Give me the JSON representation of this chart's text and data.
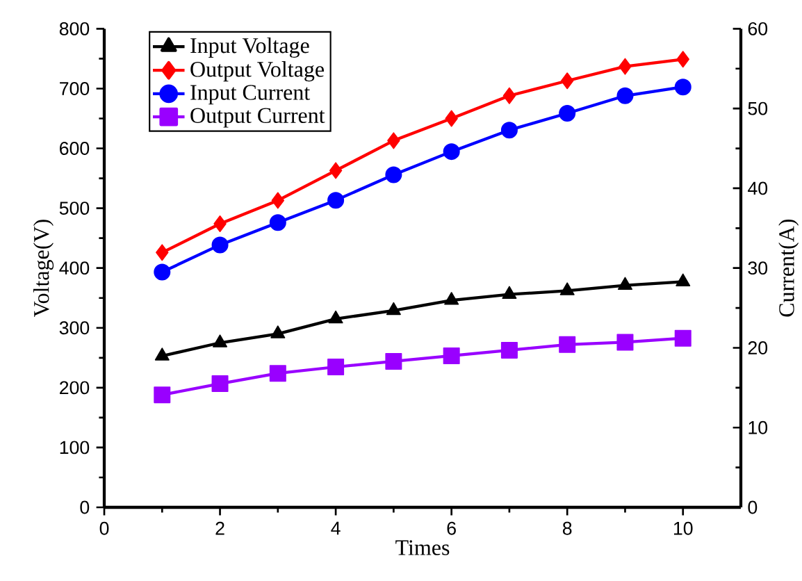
{
  "chart_data": {
    "type": "line",
    "xlabel": "Times",
    "ylabel": "Voltage(V)",
    "y2label": "Current(A)",
    "x": [
      1,
      2,
      3,
      4,
      5,
      6,
      7,
      8,
      9,
      10
    ],
    "series": [
      {
        "name": "Input Voltage",
        "color": "#000000",
        "marker": "triangle",
        "values": [
          253,
          275,
          290,
          315,
          329,
          346,
          356,
          362,
          371,
          377
        ]
      },
      {
        "name": "Output Voltage",
        "color": "#ff0000",
        "marker": "diamond",
        "values": [
          426,
          474,
          513,
          563,
          613,
          650,
          688,
          713,
          737,
          749
        ]
      },
      {
        "name": "Input Current",
        "color": "#0000ff",
        "marker": "circle",
        "axis": "y2",
        "values": [
          29.5,
          32.9,
          35.7,
          38.5,
          41.7,
          44.6,
          47.3,
          49.4,
          51.6,
          52.7
        ]
      },
      {
        "name": "Output Current",
        "color": "#9900ff",
        "marker": "square",
        "axis": "y2",
        "values": [
          14.1,
          15.5,
          16.8,
          17.6,
          18.3,
          19.0,
          19.7,
          20.4,
          20.7,
          21.2
        ]
      }
    ],
    "xlim": [
      0,
      11
    ],
    "xticks": [
      0,
      2,
      4,
      6,
      8,
      10
    ],
    "ylim": [
      0,
      800
    ],
    "yticks": [
      0,
      100,
      200,
      300,
      400,
      500,
      600,
      700,
      800
    ],
    "y2lim": [
      0,
      60
    ],
    "y2ticks": [
      0,
      10,
      20,
      30,
      40,
      50,
      60
    ],
    "legend": "top left",
    "grid": false
  }
}
